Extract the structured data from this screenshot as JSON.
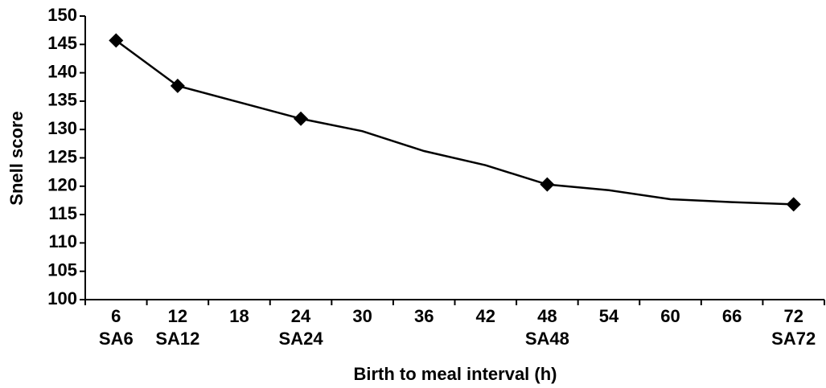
{
  "chart_data": {
    "type": "line",
    "x_label": "Birth to meal interval (h)",
    "y_label": "Snell score",
    "categories": [
      "6",
      "12",
      "18",
      "24",
      "30",
      "36",
      "42",
      "48",
      "54",
      "60",
      "66",
      "72"
    ],
    "sublabels": [
      "SA6",
      "SA12",
      null,
      "SA24",
      null,
      null,
      null,
      "SA48",
      null,
      null,
      null,
      "SA72"
    ],
    "series": [
      {
        "color": "#000000",
        "values": [
          145.7,
          137.7,
          134.8,
          131.9,
          129.7,
          126.2,
          123.7,
          120.3,
          119.3,
          117.7,
          117.2,
          116.8
        ]
      },
      {
        "color": "#000000",
        "marker": "diamond",
        "values": [
          145.7,
          137.7,
          null,
          131.9,
          null,
          null,
          null,
          120.3,
          null,
          null,
          null,
          116.8
        ]
      }
    ],
    "ylim": [
      100,
      150
    ],
    "yticks": [
      100,
      105,
      110,
      115,
      120,
      125,
      130,
      135,
      140,
      145,
      150
    ]
  }
}
